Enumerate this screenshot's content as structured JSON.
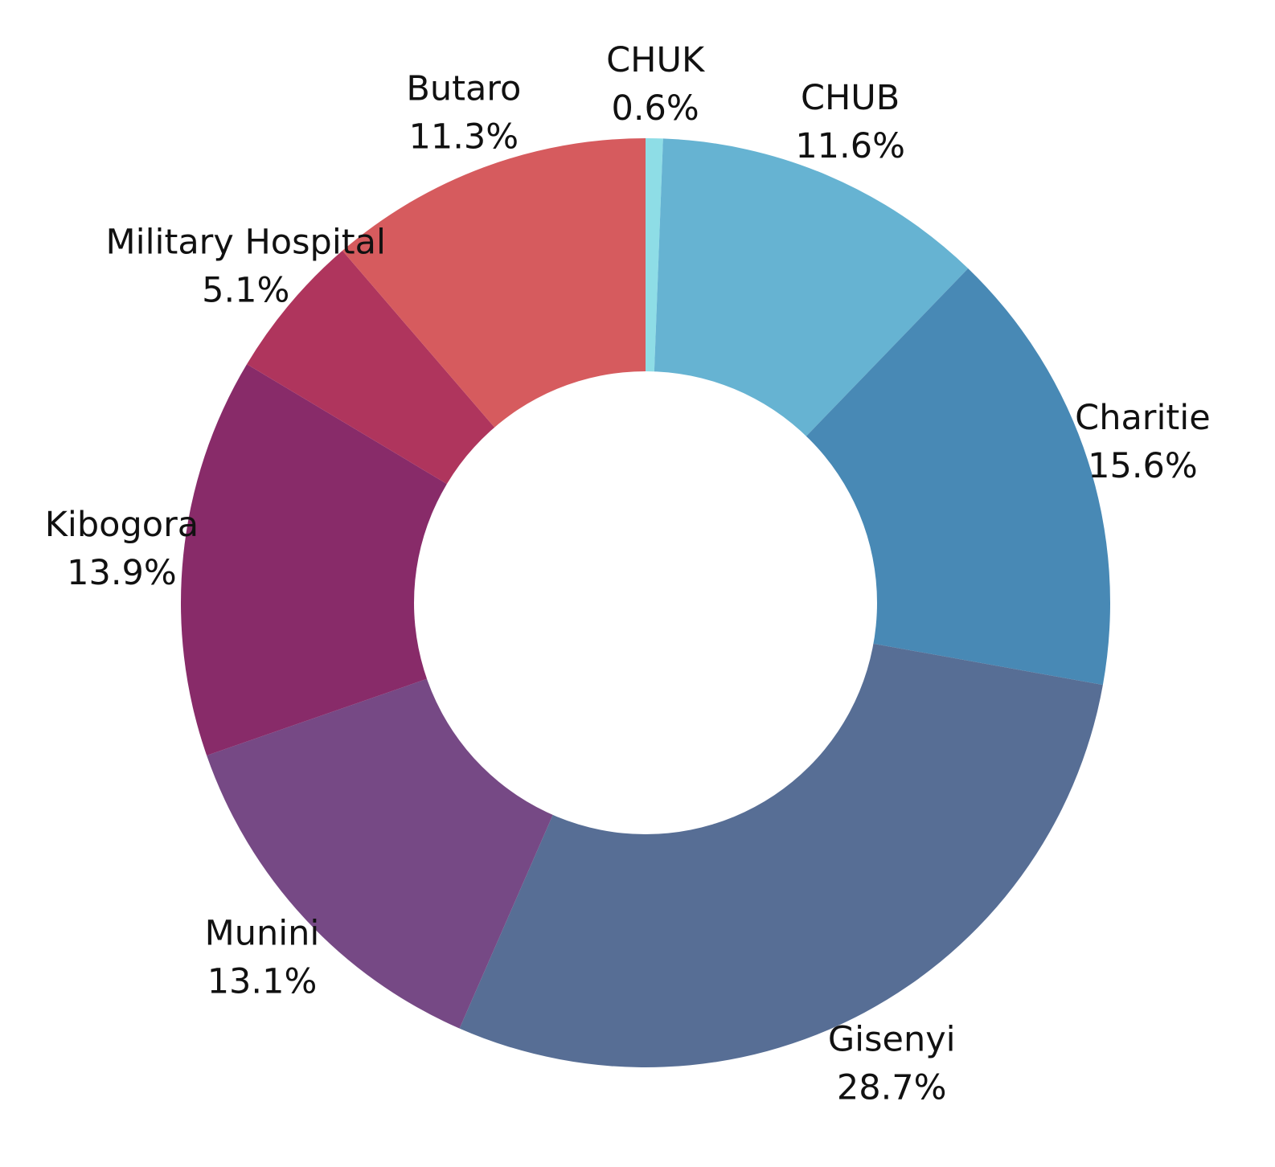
{
  "chart_data": {
    "type": "pie",
    "variant": "donut",
    "title": "",
    "legend": "none",
    "start_angle_deg": 0,
    "direction": "clockwise",
    "slices": [
      {
        "name": "CHUK",
        "value": 0.6,
        "label": "0.6%",
        "color": "#8EDDE6"
      },
      {
        "name": "CHUB",
        "value": 11.6,
        "label": "11.6%",
        "color": "#66B3D2"
      },
      {
        "name": "Charitie",
        "value": 15.6,
        "label": "15.6%",
        "color": "#4889B5"
      },
      {
        "name": "Gisenyi",
        "value": 28.7,
        "label": "28.7%",
        "color": "#576E95"
      },
      {
        "name": "Munini",
        "value": 13.1,
        "label": "13.1%",
        "color": "#764985"
      },
      {
        "name": "Kibogora",
        "value": 13.9,
        "label": "13.9%",
        "color": "#882B69"
      },
      {
        "name": "Military Hospital",
        "value": 5.1,
        "label": "5.1%",
        "color": "#AF355D"
      },
      {
        "name": "Butaro",
        "value": 11.3,
        "label": "11.3%",
        "color": "#D65B5E"
      }
    ]
  }
}
